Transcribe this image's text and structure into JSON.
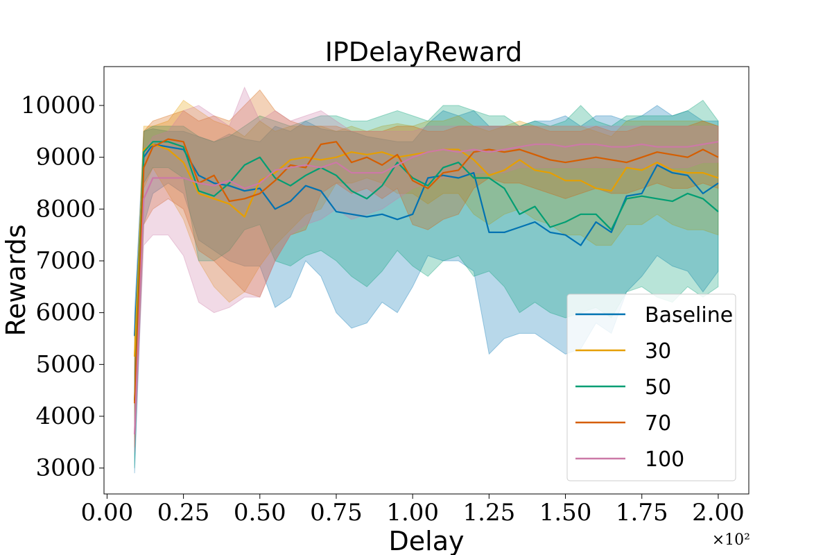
{
  "chart_data": {
    "type": "line",
    "title": "IPDelayReward",
    "xlabel": "Delay",
    "ylabel": "Rewards",
    "x_exponent_label": "×10²",
    "xlim": [
      -0.01,
      2.1
    ],
    "ylim": [
      2500,
      10750
    ],
    "x_ticks": [
      0.0,
      0.25,
      0.5,
      0.75,
      1.0,
      1.25,
      1.5,
      1.75,
      2.0
    ],
    "x_tick_labels": [
      "0.00",
      "0.25",
      "0.50",
      "0.75",
      "1.00",
      "1.25",
      "1.50",
      "1.75",
      "2.00"
    ],
    "y_ticks": [
      3000,
      4000,
      5000,
      6000,
      7000,
      8000,
      9000,
      10000
    ],
    "y_tick_labels": [
      "3000",
      "4000",
      "5000",
      "6000",
      "7000",
      "8000",
      "9000",
      "10000"
    ],
    "grid": false,
    "legend_position": "lower-right",
    "x": [
      0.09,
      0.12,
      0.15,
      0.2,
      0.25,
      0.3,
      0.35,
      0.4,
      0.45,
      0.5,
      0.55,
      0.6,
      0.65,
      0.7,
      0.75,
      0.8,
      0.85,
      0.9,
      0.95,
      1.0,
      1.05,
      1.1,
      1.15,
      1.2,
      1.25,
      1.3,
      1.35,
      1.4,
      1.45,
      1.5,
      1.55,
      1.6,
      1.65,
      1.7,
      1.75,
      1.8,
      1.85,
      1.9,
      1.95,
      2.0
    ],
    "series": [
      {
        "name": "Baseline",
        "color": "#0072b2",
        "values": [
          5550,
          9000,
          9250,
          9200,
          9150,
          8650,
          8500,
          8450,
          8350,
          8400,
          8000,
          8150,
          8450,
          8350,
          7950,
          7900,
          7850,
          7900,
          7800,
          7900,
          8600,
          8650,
          8600,
          8700,
          7550,
          7550,
          7650,
          7750,
          7550,
          7500,
          7300,
          7750,
          7550,
          8250,
          8300,
          8850,
          8700,
          8650,
          8300,
          8500
        ],
        "lower": [
          2900,
          7700,
          8300,
          8500,
          8300,
          7400,
          7200,
          7000,
          6900,
          6900,
          6100,
          6300,
          7000,
          6700,
          6000,
          5700,
          5800,
          6200,
          6000,
          6500,
          7100,
          7000,
          7000,
          6800,
          5200,
          5500,
          5600,
          5600,
          5400,
          5200,
          5300,
          5800,
          5600,
          6400,
          6700,
          7100,
          6900,
          6800,
          6400,
          6800
        ],
        "upper": [
          6000,
          9500,
          9550,
          9500,
          9500,
          9400,
          9300,
          9450,
          9350,
          9300,
          9600,
          9500,
          9700,
          9550,
          9500,
          9500,
          9400,
          9350,
          9300,
          9300,
          9650,
          9900,
          9800,
          9900,
          9600,
          9600,
          9600,
          9700,
          9700,
          9800,
          9600,
          9800,
          9800,
          9700,
          9800,
          10000,
          9800,
          9900,
          9700,
          9700
        ]
      },
      {
        "name": "30",
        "color": "#e69f00",
        "values": [
          5150,
          9150,
          9250,
          9150,
          8900,
          8300,
          8200,
          8100,
          7850,
          8550,
          8700,
          8950,
          9000,
          8950,
          9000,
          9100,
          9050,
          9100,
          9000,
          9050,
          9100,
          9150,
          9150,
          8950,
          8650,
          8750,
          8950,
          8750,
          8700,
          8550,
          8550,
          8400,
          8350,
          8800,
          8750,
          8900,
          8750,
          8700,
          8700,
          8600
        ],
        "lower": [
          3600,
          8400,
          8800,
          8300,
          7800,
          7000,
          6500,
          6200,
          6400,
          6900,
          7300,
          7600,
          7900,
          8000,
          8500,
          8500,
          8600,
          8500,
          8300,
          8300,
          8100,
          8300,
          8300,
          7900,
          7700,
          7900,
          8000,
          7800,
          7700,
          7500,
          7500,
          7300,
          7300,
          7700,
          7700,
          7900,
          7700,
          7600,
          7600,
          7500
        ],
        "upper": [
          5500,
          9600,
          9600,
          9700,
          10100,
          9900,
          9700,
          9600,
          9400,
          9700,
          9500,
          9600,
          9600,
          9600,
          9500,
          9600,
          9500,
          9600,
          9650,
          9600,
          9700,
          9700,
          9800,
          9600,
          9500,
          9600,
          9700,
          9600,
          9600,
          9600,
          9600,
          9500,
          9400,
          9700,
          9700,
          9700,
          9700,
          9700,
          9700,
          9600
        ]
      },
      {
        "name": "50",
        "color": "#009e73",
        "values": [
          4300,
          9100,
          9300,
          9300,
          9200,
          8350,
          8250,
          8500,
          8850,
          9000,
          8600,
          8450,
          8650,
          8800,
          8650,
          8350,
          8200,
          8450,
          8900,
          8600,
          8450,
          8800,
          8900,
          8600,
          8600,
          8400,
          7900,
          8050,
          7650,
          7750,
          7900,
          7900,
          7600,
          8200,
          8250,
          8200,
          8150,
          8300,
          8200,
          7950
        ],
        "lower": [
          3000,
          8500,
          8800,
          8800,
          8600,
          7000,
          7000,
          7200,
          7600,
          7700,
          7000,
          6900,
          7100,
          7200,
          7000,
          6700,
          6500,
          6800,
          7200,
          6900,
          6700,
          7000,
          7100,
          6700,
          6800,
          6500,
          6000,
          6200,
          6000,
          5900,
          6000,
          6100,
          5900,
          6400,
          6500,
          6300,
          6200,
          6500,
          6300,
          6500
        ],
        "upper": [
          4800,
          9500,
          9600,
          9600,
          9600,
          9400,
          9300,
          9400,
          9600,
          9800,
          9700,
          9600,
          9700,
          9800,
          9800,
          9700,
          9700,
          9800,
          9900,
          9800,
          9700,
          10000,
          10000,
          9900,
          9800,
          9800,
          9600,
          9700,
          9600,
          9700,
          10000,
          9700,
          9600,
          9800,
          9800,
          9800,
          9800,
          9900,
          10100,
          9700
        ]
      },
      {
        "name": "70",
        "color": "#d55e00",
        "values": [
          4250,
          8800,
          9200,
          9350,
          9300,
          8500,
          8650,
          8150,
          8200,
          8300,
          8550,
          8850,
          8800,
          9250,
          9300,
          8900,
          9000,
          8850,
          9050,
          8550,
          8400,
          8700,
          8750,
          9100,
          9150,
          9100,
          9150,
          9050,
          8950,
          8900,
          8950,
          9000,
          8950,
          8900,
          9000,
          9100,
          9050,
          9000,
          9150,
          9000
        ],
        "lower": [
          3400,
          7700,
          8000,
          8200,
          8000,
          7200,
          7000,
          6700,
          6400,
          6300,
          7000,
          7500,
          7600,
          8300,
          8500,
          8300,
          8400,
          8200,
          8400,
          7700,
          7600,
          7800,
          7900,
          8400,
          8600,
          8500,
          8500,
          8400,
          8300,
          8200,
          8300,
          8400,
          8300,
          8300,
          8400,
          8500,
          8400,
          8400,
          8500,
          8400
        ],
        "upper": [
          5000,
          9500,
          9700,
          9800,
          9900,
          9700,
          9800,
          9700,
          10000,
          10300,
          9900,
          9700,
          9600,
          9600,
          9600,
          9500,
          9500,
          9500,
          9600,
          9600,
          9500,
          9500,
          9600,
          9600,
          9600,
          9600,
          9600,
          9600,
          9500,
          9500,
          9500,
          9600,
          9500,
          9500,
          9600,
          9600,
          9600,
          9600,
          9700,
          9600
        ]
      },
      {
        "name": "100",
        "color": "#cc79a7",
        "values": [
          3650,
          8200,
          8600,
          8600,
          8600,
          8500,
          8450,
          8550,
          8400,
          8500,
          8750,
          8800,
          8850,
          8800,
          8900,
          8700,
          8700,
          8700,
          8850,
          9000,
          9100,
          9150,
          9100,
          9150,
          9100,
          9150,
          9200,
          9250,
          9250,
          9200,
          9250,
          9250,
          9200,
          9200,
          9250,
          9200,
          9200,
          9200,
          9250,
          9300
        ],
        "lower": [
          3300,
          7300,
          7500,
          7500,
          7100,
          6200,
          6000,
          6100,
          6300,
          6300,
          7000,
          7500,
          7700,
          7800,
          8000,
          7800,
          7900,
          8000,
          8200,
          8400,
          8500,
          8600,
          8600,
          8700,
          8700,
          8700,
          8800,
          8800,
          8800,
          8800,
          8800,
          8800,
          8800,
          8800,
          8800,
          8800,
          8800,
          8800,
          8900,
          8900
        ],
        "upper": [
          3900,
          9100,
          9400,
          9500,
          9900,
          10000,
          9800,
          9600,
          10350,
          9700,
          9900,
          9700,
          9800,
          9900,
          9700,
          9500,
          9500,
          9500,
          9500,
          9500,
          9600,
          9600,
          9600,
          9600,
          9600,
          9600,
          9600,
          9600,
          9600,
          9600,
          9600,
          9600,
          9600,
          9600,
          9600,
          9600,
          9600,
          9600,
          9600,
          9600
        ]
      }
    ]
  }
}
